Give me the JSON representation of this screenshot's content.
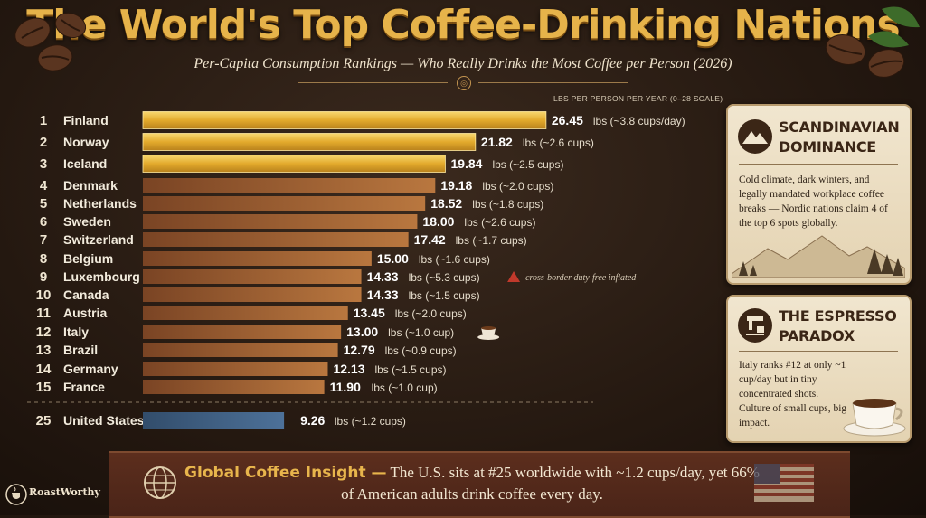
{
  "header": {
    "title": "The World's Top Coffee-Drinking Nations",
    "subtitle": "Per-Capita Consumption Rankings — Who Really Drinks the Most Coffee per Person (2026)",
    "scale_label": "LBS PER PERSON PER YEAR (0–28 SCALE)"
  },
  "chart_data": {
    "type": "bar",
    "orientation": "horizontal",
    "unit": "lbs",
    "xlim": [
      0,
      28
    ],
    "rows": [
      {
        "rank": "1",
        "country": "Finland",
        "value": 26.45,
        "value_label": "26.45",
        "cups": "(~3.8 cups/day)",
        "tier": "top"
      },
      {
        "rank": "2",
        "country": "Norway",
        "value": 21.82,
        "value_label": "21.82",
        "cups": "(~2.6 cups)",
        "tier": "top"
      },
      {
        "rank": "3",
        "country": "Iceland",
        "value": 19.84,
        "value_label": "19.84",
        "cups": "(~2.5 cups)",
        "tier": "top"
      },
      {
        "rank": "4",
        "country": "Denmark",
        "value": 19.18,
        "value_label": "19.18",
        "cups": "(~2.0 cups)",
        "tier": "mid"
      },
      {
        "rank": "5",
        "country": "Netherlands",
        "value": 18.52,
        "value_label": "18.52",
        "cups": "(~1.8 cups)",
        "tier": "mid"
      },
      {
        "rank": "6",
        "country": "Sweden",
        "value": 18.0,
        "value_label": "18.00",
        "cups": "(~2.6 cups)",
        "tier": "mid"
      },
      {
        "rank": "7",
        "country": "Switzerland",
        "value": 17.42,
        "value_label": "17.42",
        "cups": "(~1.7 cups)",
        "tier": "mid"
      },
      {
        "rank": "8",
        "country": "Belgium",
        "value": 15.0,
        "value_label": "15.00",
        "cups": "(~1.6 cups)",
        "tier": "mid"
      },
      {
        "rank": "9",
        "country": "Luxembourg",
        "value": 14.33,
        "value_label": "14.33",
        "cups": "(~5.3 cups)",
        "tier": "mid",
        "note": "cross-border duty-free inflated"
      },
      {
        "rank": "10",
        "country": "Canada",
        "value": 14.33,
        "value_label": "14.33",
        "cups": "(~1.5 cups)",
        "tier": "mid"
      },
      {
        "rank": "11",
        "country": "Austria",
        "value": 13.45,
        "value_label": "13.45",
        "cups": "(~2.0 cups)",
        "tier": "mid"
      },
      {
        "rank": "12",
        "country": "Italy",
        "value": 13.0,
        "value_label": "13.00",
        "cups": "(~1.0 cup)",
        "tier": "mid",
        "icon": "coffee-cup-icon"
      },
      {
        "rank": "13",
        "country": "Brazil",
        "value": 12.79,
        "value_label": "12.79",
        "cups": "(~0.9 cups)",
        "tier": "mid"
      },
      {
        "rank": "14",
        "country": "Germany",
        "value": 12.13,
        "value_label": "12.13",
        "cups": "(~1.5 cups)",
        "tier": "mid"
      },
      {
        "rank": "15",
        "country": "France",
        "value": 11.9,
        "value_label": "11.90",
        "cups": "(~1.0 cup)",
        "tier": "mid"
      },
      {
        "rank": "25",
        "country": "United States",
        "value": 9.26,
        "value_label": "9.26",
        "cups": "(~1.2 cups)",
        "tier": "us"
      }
    ],
    "colors": {
      "top": "#e8b73a",
      "mid": "#a8683a",
      "us": "#3f5f82"
    }
  },
  "cards": {
    "scandinavian": {
      "title_line1": "SCANDINAVIAN",
      "title_line2": "DOMINANCE",
      "icon": "mountain-icon",
      "body": "Cold climate, dark winters, and legally mandated workplace coffee breaks — Nordic nations claim 4 of the top 6 spots globally."
    },
    "espresso": {
      "title_line1": "THE ESPRESSO",
      "title_line2": "PARADOX",
      "icon": "espresso-machine-icon",
      "body": "Italy ranks #12 at only ~1 cup/day but in tiny concentrated shots. Culture of small cups, big impact."
    }
  },
  "banner": {
    "heading": "Global Coffee Insight —",
    "text": "The U.S. sits at #25 worldwide with ~1.2 cups/day, yet 66% of American adults drink coffee every day.",
    "icons": [
      "globe-icon",
      "us-flag-icon"
    ]
  },
  "brand": {
    "name": "RoastWorthy"
  },
  "labels": {
    "lbs": "lbs"
  }
}
